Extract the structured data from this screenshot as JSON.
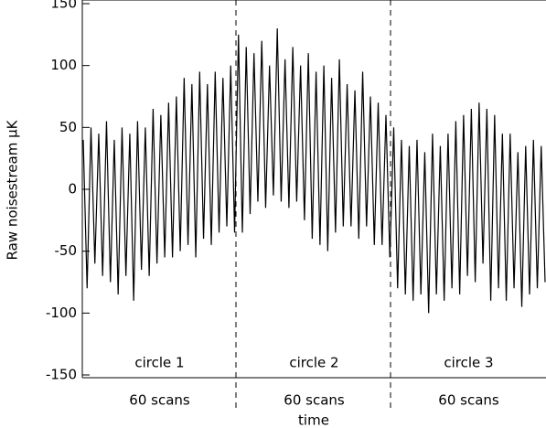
{
  "chart_data": {
    "type": "line",
    "xlabel": "time",
    "ylabel": "Raw noisestream μK",
    "annotations": [
      "circle 1",
      "circle 2",
      "circle 3"
    ],
    "segment_labels": [
      "60 scans",
      "60 scans",
      "60 scans"
    ],
    "color": "#000000",
    "ylim": [
      -150,
      150
    ],
    "yticks": [
      -150,
      -100,
      -50,
      0,
      50,
      100,
      150
    ],
    "values": [
      40,
      -80,
      50,
      -60,
      45,
      -70,
      55,
      -75,
      40,
      -85,
      50,
      -70,
      45,
      -90,
      55,
      -65,
      50,
      -70,
      65,
      -60,
      60,
      -55,
      70,
      -55,
      75,
      -50,
      90,
      -45,
      85,
      -55,
      95,
      -40,
      85,
      -45,
      95,
      -35,
      90,
      -30,
      100,
      -35,
      125,
      -35,
      115,
      -20,
      110,
      -10,
      120,
      -15,
      100,
      -5,
      130,
      -10,
      105,
      -15,
      115,
      -10,
      100,
      -25,
      110,
      -40,
      95,
      -45,
      100,
      -50,
      90,
      -35,
      105,
      -30,
      85,
      -30,
      80,
      -40,
      95,
      -30,
      75,
      -45,
      70,
      -45,
      60,
      -55,
      50,
      -80,
      40,
      -85,
      35,
      -90,
      40,
      -85,
      30,
      -100,
      45,
      -85,
      35,
      -90,
      45,
      -80,
      55,
      -85,
      60,
      -70,
      65,
      -75,
      70,
      -60,
      65,
      -90,
      60,
      -80,
      45,
      -90,
      45,
      -80,
      30,
      -95,
      35,
      -85,
      40,
      -80,
      35,
      -75
    ]
  }
}
